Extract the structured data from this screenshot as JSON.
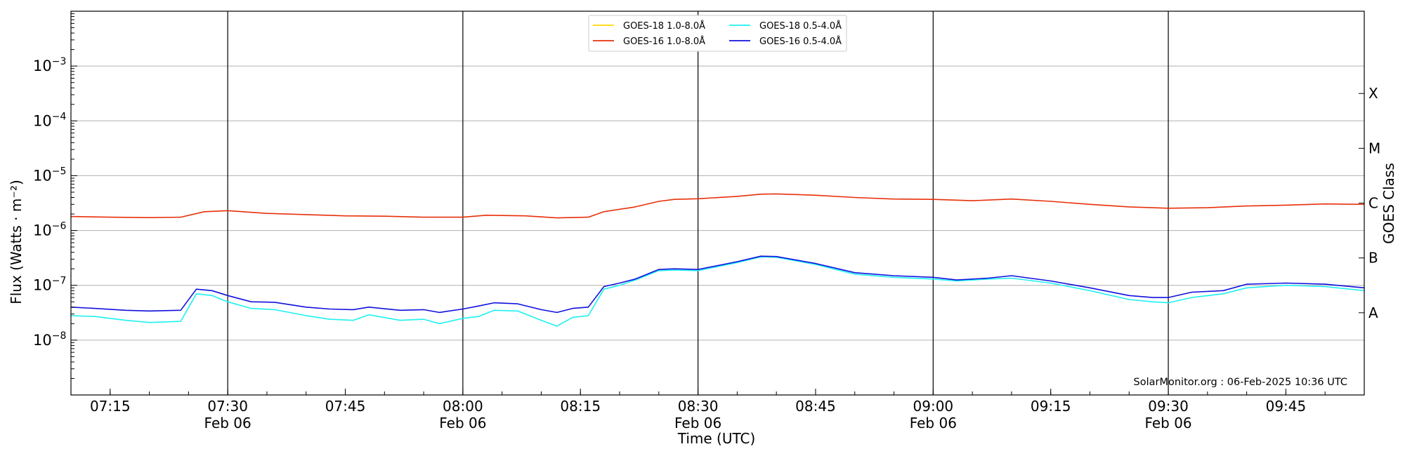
{
  "chart_data": {
    "type": "line",
    "ylabel": "Flux (Watts · m⁻²)",
    "xlabel": "Time (UTC)",
    "y2label": "GOES Class",
    "yscale": "log",
    "ylim": [
      1e-09,
      0.01
    ],
    "xlim": [
      "07:10",
      "09:55"
    ],
    "y_ticks": [
      {
        "value": 1e-08,
        "mantissa": "10",
        "exponent": "−8"
      },
      {
        "value": 1e-07,
        "mantissa": "10",
        "exponent": "−7"
      },
      {
        "value": 1e-06,
        "mantissa": "10",
        "exponent": "−6"
      },
      {
        "value": 1e-05,
        "mantissa": "10",
        "exponent": "−5"
      },
      {
        "value": 0.0001,
        "mantissa": "10",
        "exponent": "−4"
      },
      {
        "value": 0.001,
        "mantissa": "10",
        "exponent": "−3"
      }
    ],
    "x_ticks": [
      {
        "time": "07:15",
        "label": "07:15",
        "date": ""
      },
      {
        "time": "07:30",
        "label": "07:30",
        "date": "Feb 06"
      },
      {
        "time": "07:45",
        "label": "07:45",
        "date": ""
      },
      {
        "time": "08:00",
        "label": "08:00",
        "date": "Feb 06"
      },
      {
        "time": "08:15",
        "label": "08:15",
        "date": ""
      },
      {
        "time": "08:30",
        "label": "08:30",
        "date": "Feb 06"
      },
      {
        "time": "08:45",
        "label": "08:45",
        "date": ""
      },
      {
        "time": "09:00",
        "label": "09:00",
        "date": "Feb 06"
      },
      {
        "time": "09:15",
        "label": "09:15",
        "date": ""
      },
      {
        "time": "09:30",
        "label": "09:30",
        "date": "Feb 06"
      },
      {
        "time": "09:45",
        "label": "09:45",
        "date": ""
      }
    ],
    "vertical_lines": [
      "07:30",
      "08:00",
      "08:30",
      "09:00",
      "09:30"
    ],
    "goes_classes": [
      {
        "label": "X",
        "value": 0.000316
      },
      {
        "label": "M",
        "value": 3.16e-05
      },
      {
        "label": "C",
        "value": 3.16e-06
      },
      {
        "label": "B",
        "value": 3.16e-07
      },
      {
        "label": "A",
        "value": 3.16e-08
      }
    ],
    "grid": "horizontal at decades",
    "legend_position": "top-center",
    "legend": [
      {
        "label": "GOES-18 1.0-8.0Å",
        "color": "#ffd700"
      },
      {
        "label": "GOES-16 1.0-8.0Å",
        "color": "#e8300a"
      },
      {
        "label": "GOES-18 0.5-4.0Å",
        "color": "#20f0f0"
      },
      {
        "label": "GOES-16 0.5-4.0Å",
        "color": "#1010dd"
      }
    ],
    "series": [
      {
        "name": "GOES-18 1.0-8.0Å",
        "color": "#ffd700",
        "points": []
      },
      {
        "name": "GOES-16 1.0-8.0Å",
        "color": "#e8300a",
        "points": [
          [
            "07:10",
            1.8e-06
          ],
          [
            "07:15",
            1.75e-06
          ],
          [
            "07:20",
            1.72e-06
          ],
          [
            "07:24",
            1.75e-06
          ],
          [
            "07:27",
            2.2e-06
          ],
          [
            "07:30",
            2.3e-06
          ],
          [
            "07:35",
            2.05e-06
          ],
          [
            "07:40",
            1.95e-06
          ],
          [
            "07:45",
            1.85e-06
          ],
          [
            "07:50",
            1.82e-06
          ],
          [
            "07:55",
            1.75e-06
          ],
          [
            "08:00",
            1.75e-06
          ],
          [
            "08:03",
            1.9e-06
          ],
          [
            "08:08",
            1.85e-06
          ],
          [
            "08:12",
            1.7e-06
          ],
          [
            "08:16",
            1.75e-06
          ],
          [
            "08:18",
            2.2e-06
          ],
          [
            "08:22",
            2.7e-06
          ],
          [
            "08:25",
            3.4e-06
          ],
          [
            "08:27",
            3.7e-06
          ],
          [
            "08:30",
            3.8e-06
          ],
          [
            "08:35",
            4.2e-06
          ],
          [
            "08:38",
            4.6e-06
          ],
          [
            "08:40",
            4.65e-06
          ],
          [
            "08:45",
            4.4e-06
          ],
          [
            "08:50",
            4e-06
          ],
          [
            "08:55",
            3.75e-06
          ],
          [
            "09:00",
            3.7e-06
          ],
          [
            "09:05",
            3.5e-06
          ],
          [
            "09:10",
            3.75e-06
          ],
          [
            "09:15",
            3.4e-06
          ],
          [
            "09:20",
            3e-06
          ],
          [
            "09:25",
            2.7e-06
          ],
          [
            "09:30",
            2.55e-06
          ],
          [
            "09:35",
            2.6e-06
          ],
          [
            "09:40",
            2.8e-06
          ],
          [
            "09:45",
            2.9e-06
          ],
          [
            "09:50",
            3.05e-06
          ],
          [
            "09:55",
            3e-06
          ]
        ]
      },
      {
        "name": "GOES-18 0.5-4.0Å",
        "color": "#20f0f0",
        "points": [
          [
            "07:10",
            2.8e-08
          ],
          [
            "07:13",
            2.7e-08
          ],
          [
            "07:17",
            2.3e-08
          ],
          [
            "07:20",
            2.1e-08
          ],
          [
            "07:24",
            2.2e-08
          ],
          [
            "07:26",
            7e-08
          ],
          [
            "07:28",
            6.5e-08
          ],
          [
            "07:30",
            5e-08
          ],
          [
            "07:33",
            3.8e-08
          ],
          [
            "07:36",
            3.6e-08
          ],
          [
            "07:40",
            2.8e-08
          ],
          [
            "07:43",
            2.4e-08
          ],
          [
            "07:46",
            2.3e-08
          ],
          [
            "07:48",
            2.9e-08
          ],
          [
            "07:52",
            2.3e-08
          ],
          [
            "07:55",
            2.4e-08
          ],
          [
            "07:57",
            2e-08
          ],
          [
            "08:00",
            2.5e-08
          ],
          [
            "08:02",
            2.7e-08
          ],
          [
            "08:04",
            3.5e-08
          ],
          [
            "08:07",
            3.4e-08
          ],
          [
            "08:10",
            2.3e-08
          ],
          [
            "08:12",
            1.8e-08
          ],
          [
            "08:14",
            2.6e-08
          ],
          [
            "08:16",
            2.8e-08
          ],
          [
            "08:18",
            8.5e-08
          ],
          [
            "08:20",
            1e-07
          ],
          [
            "08:22",
            1.25e-07
          ],
          [
            "08:25",
            1.85e-07
          ],
          [
            "08:27",
            1.9e-07
          ],
          [
            "08:30",
            1.85e-07
          ],
          [
            "08:35",
            2.6e-07
          ],
          [
            "08:38",
            3.3e-07
          ],
          [
            "08:40",
            3.25e-07
          ],
          [
            "08:45",
            2.4e-07
          ],
          [
            "08:50",
            1.6e-07
          ],
          [
            "08:55",
            1.4e-07
          ],
          [
            "09:00",
            1.3e-07
          ],
          [
            "09:03",
            1.2e-07
          ],
          [
            "09:07",
            1.3e-07
          ],
          [
            "09:10",
            1.35e-07
          ],
          [
            "09:15",
            1.1e-07
          ],
          [
            "09:20",
            8e-08
          ],
          [
            "09:25",
            5.5e-08
          ],
          [
            "09:28",
            5e-08
          ],
          [
            "09:30",
            4.8e-08
          ],
          [
            "09:33",
            6e-08
          ],
          [
            "09:37",
            7e-08
          ],
          [
            "09:40",
            9e-08
          ],
          [
            "09:45",
            1e-07
          ],
          [
            "09:50",
            9.5e-08
          ],
          [
            "09:55",
            8e-08
          ]
        ]
      },
      {
        "name": "GOES-16 0.5-4.0Å",
        "color": "#1010dd",
        "points": [
          [
            "07:10",
            4e-08
          ],
          [
            "07:13",
            3.8e-08
          ],
          [
            "07:17",
            3.5e-08
          ],
          [
            "07:20",
            3.4e-08
          ],
          [
            "07:24",
            3.5e-08
          ],
          [
            "07:26",
            8.5e-08
          ],
          [
            "07:28",
            8e-08
          ],
          [
            "07:30",
            6.5e-08
          ],
          [
            "07:33",
            5e-08
          ],
          [
            "07:36",
            4.9e-08
          ],
          [
            "07:40",
            4e-08
          ],
          [
            "07:43",
            3.7e-08
          ],
          [
            "07:46",
            3.6e-08
          ],
          [
            "07:48",
            4e-08
          ],
          [
            "07:52",
            3.5e-08
          ],
          [
            "07:55",
            3.6e-08
          ],
          [
            "07:57",
            3.2e-08
          ],
          [
            "08:00",
            3.7e-08
          ],
          [
            "08:02",
            4.2e-08
          ],
          [
            "08:04",
            4.8e-08
          ],
          [
            "08:07",
            4.6e-08
          ],
          [
            "08:10",
            3.6e-08
          ],
          [
            "08:12",
            3.2e-08
          ],
          [
            "08:14",
            3.8e-08
          ],
          [
            "08:16",
            4e-08
          ],
          [
            "08:18",
            9.5e-08
          ],
          [
            "08:20",
            1.1e-07
          ],
          [
            "08:22",
            1.3e-07
          ],
          [
            "08:25",
            1.95e-07
          ],
          [
            "08:27",
            2e-07
          ],
          [
            "08:30",
            1.95e-07
          ],
          [
            "08:35",
            2.7e-07
          ],
          [
            "08:38",
            3.4e-07
          ],
          [
            "08:40",
            3.35e-07
          ],
          [
            "08:45",
            2.5e-07
          ],
          [
            "08:50",
            1.7e-07
          ],
          [
            "08:55",
            1.5e-07
          ],
          [
            "09:00",
            1.4e-07
          ],
          [
            "09:03",
            1.25e-07
          ],
          [
            "09:07",
            1.35e-07
          ],
          [
            "09:10",
            1.5e-07
          ],
          [
            "09:15",
            1.2e-07
          ],
          [
            "09:20",
            9e-08
          ],
          [
            "09:25",
            6.5e-08
          ],
          [
            "09:28",
            6e-08
          ],
          [
            "09:30",
            6e-08
          ],
          [
            "09:33",
            7.5e-08
          ],
          [
            "09:37",
            8e-08
          ],
          [
            "09:40",
            1.05e-07
          ],
          [
            "09:45",
            1.1e-07
          ],
          [
            "09:50",
            1.05e-07
          ],
          [
            "09:55",
            9e-08
          ]
        ]
      }
    ],
    "watermark": "SolarMonitor.org : 06-Feb-2025 10:36 UTC"
  }
}
